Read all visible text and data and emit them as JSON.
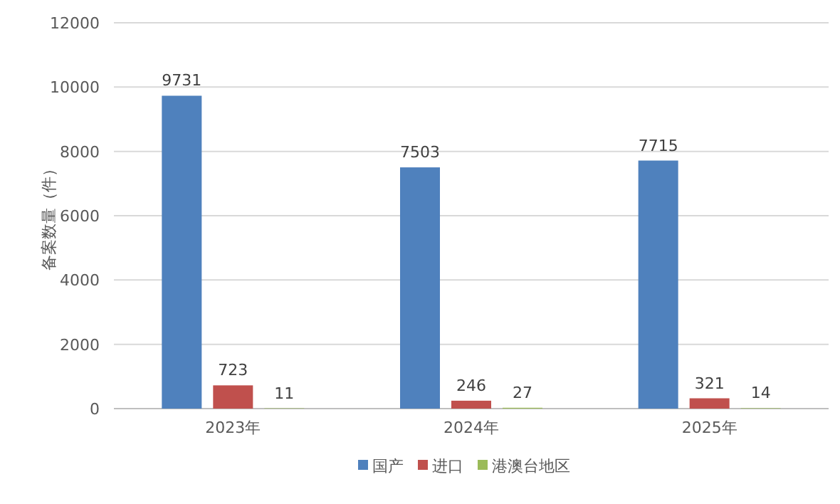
{
  "chart_data": {
    "type": "bar",
    "ylabel": "备案数量（件）",
    "categories": [
      "2023年",
      "2024年",
      "2025年"
    ],
    "series": [
      {
        "name": "国产",
        "color": "#4f81bd",
        "values": [
          9731,
          7503,
          7715
        ]
      },
      {
        "name": "进口",
        "color": "#c0504d",
        "values": [
          723,
          246,
          321
        ]
      },
      {
        "name": "港澳台地区",
        "color": "#9bbb59",
        "values": [
          11,
          27,
          14
        ]
      }
    ],
    "ylim": [
      0,
      12000
    ],
    "yticks": [
      0,
      2000,
      4000,
      6000,
      8000,
      10000,
      12000
    ],
    "grid": "y",
    "legend": "bottom",
    "data_labels": true
  }
}
